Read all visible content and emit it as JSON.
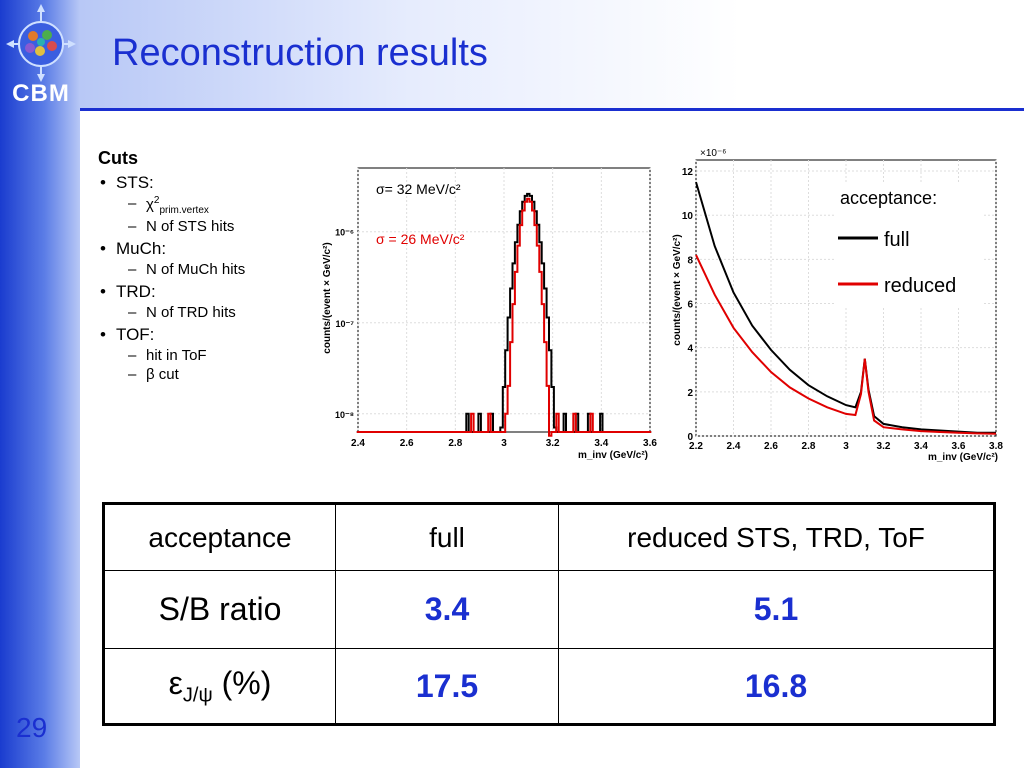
{
  "slide": {
    "title": "Reconstruction results",
    "logo_text": "CBM",
    "page_number": "29"
  },
  "cuts": {
    "heading": "Cuts",
    "items": [
      {
        "label": "STS:",
        "sub": [
          "χ",
          "N of STS hits"
        ]
      },
      {
        "label": "MuCh:",
        "sub": [
          "N of MuCh hits"
        ]
      },
      {
        "label": "TRD:",
        "sub": [
          "N of TRD hits"
        ]
      },
      {
        "label": "TOF:",
        "sub": [
          "hit in ToF",
          "β cut"
        ]
      }
    ],
    "chi_sup": "2",
    "chi_sub": "prim.vertex"
  },
  "chart_data": [
    {
      "type": "line",
      "ylabel": "counts/(event × GeV/c²)",
      "xlabel": "m_inv (GeV/c²)",
      "xlim": [
        2.4,
        3.6
      ],
      "ylim_log": [
        -8.2,
        -5.3
      ],
      "yscale": "log",
      "yticks": [
        "10⁻⁸",
        "10⁻⁷",
        "10⁻⁶"
      ],
      "xticks": [
        "2.4",
        "2.6",
        "2.8",
        "3",
        "3.2",
        "3.4",
        "3.6"
      ],
      "annotations": [
        {
          "text": "σ= 32 MeV/c²",
          "color": "#000000"
        },
        {
          "text": "σ = 26 MeV/c²",
          "color": "#e00000"
        }
      ],
      "series": [
        {
          "color": "#000000",
          "mean": 3.1,
          "sigma": 0.032,
          "peak": 2.6e-06
        },
        {
          "color": "#e00000",
          "mean": 3.1,
          "sigma": 0.026,
          "peak": 2.3e-06
        }
      ]
    },
    {
      "type": "line",
      "ylabel": "counts/(event × GeV/c²)",
      "xlabel": "m_inv (GeV/c²)",
      "xlim": [
        2.2,
        3.8
      ],
      "ylim": [
        0,
        12.5
      ],
      "y_multiplier": "×10⁻⁶",
      "yticks": [
        "0",
        "2",
        "4",
        "6",
        "8",
        "10",
        "12"
      ],
      "xticks": [
        "2.2",
        "2.4",
        "2.6",
        "2.8",
        "3",
        "3.2",
        "3.4",
        "3.6",
        "3.8"
      ],
      "legend": {
        "title": "acceptance:",
        "placement": "top-right"
      },
      "series": [
        {
          "name": "full",
          "color": "#000000",
          "x": [
            2.2,
            2.3,
            2.4,
            2.5,
            2.6,
            2.7,
            2.8,
            2.9,
            3.0,
            3.05,
            3.08,
            3.1,
            3.12,
            3.15,
            3.2,
            3.3,
            3.4,
            3.5,
            3.6,
            3.7,
            3.8
          ],
          "y": [
            11.5,
            8.6,
            6.5,
            5.0,
            3.9,
            3.0,
            2.3,
            1.8,
            1.4,
            1.3,
            2.0,
            3.5,
            2.1,
            0.9,
            0.55,
            0.4,
            0.3,
            0.25,
            0.2,
            0.15,
            0.15
          ]
        },
        {
          "name": "reduced",
          "color": "#e00000",
          "x": [
            2.2,
            2.3,
            2.4,
            2.5,
            2.6,
            2.7,
            2.8,
            2.9,
            3.0,
            3.05,
            3.08,
            3.1,
            3.12,
            3.15,
            3.2,
            3.3,
            3.4,
            3.5,
            3.6,
            3.7,
            3.8
          ],
          "y": [
            8.2,
            6.4,
            4.9,
            3.8,
            2.9,
            2.2,
            1.7,
            1.3,
            1.0,
            0.95,
            1.9,
            3.5,
            2.0,
            0.7,
            0.4,
            0.3,
            0.22,
            0.18,
            0.15,
            0.12,
            0.1
          ]
        }
      ]
    }
  ],
  "table": {
    "header": [
      "acceptance",
      "full",
      "reduced STS, TRD, ToF"
    ],
    "rows": [
      {
        "label": "S/B ratio",
        "full": "3.4",
        "reduced": "5.1"
      },
      {
        "label_main": "ε",
        "label_sub": "J/ψ",
        "label_tail": " (%)",
        "full": "17.5",
        "reduced": "16.8"
      }
    ]
  }
}
